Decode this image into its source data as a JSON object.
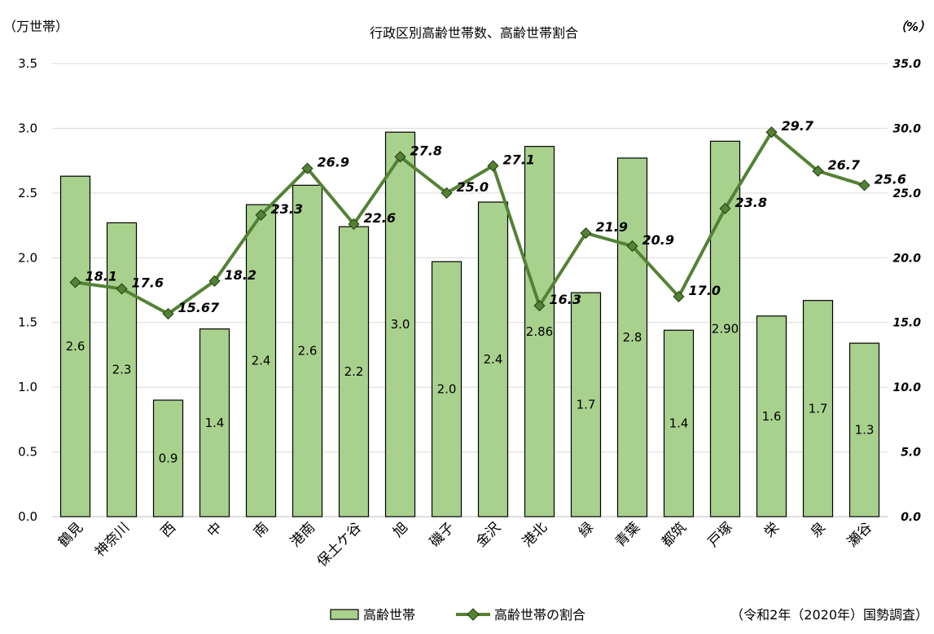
{
  "chart_data": {
    "type": "bar",
    "title": "行政区別高齢世帯数、高齢世帯割合",
    "left_unit": "（万世帯）",
    "right_unit": "（%）",
    "source": "（令和2年（2020年）国勢調査）",
    "categories": [
      "鶴見",
      "神奈川",
      "西",
      "中",
      "南",
      "港南",
      "保土ケ谷",
      "旭",
      "磯子",
      "金沢",
      "港北",
      "緑",
      "青葉",
      "都筑",
      "戸塚",
      "栄",
      "泉",
      "瀬谷"
    ],
    "ylim": [
      0,
      3.5
    ],
    "y2lim": [
      0,
      35.0
    ],
    "yticks": [
      "0.0",
      "0.5",
      "1.0",
      "1.5",
      "2.0",
      "2.5",
      "3.0",
      "3.5"
    ],
    "y2ticks": [
      "0.0",
      "5.0",
      "10.0",
      "15.0",
      "20.0",
      "25.0",
      "30.0",
      "35.0"
    ],
    "grid": true,
    "legend_position": "bottom",
    "series": [
      {
        "name": "高齢世帯",
        "type": "bar",
        "axis": "left",
        "color": "#a9d18e",
        "values": [
          2.63,
          2.27,
          0.9,
          1.45,
          2.41,
          2.56,
          2.24,
          2.97,
          1.97,
          2.43,
          2.86,
          1.73,
          2.77,
          1.44,
          2.9,
          1.55,
          1.67,
          1.34
        ],
        "labels": [
          "2.6",
          "2.3",
          "0.9",
          "1.4",
          "2.4",
          "2.6",
          "2.2",
          "3.0",
          "2.0",
          "2.4",
          "2.86",
          "1.7",
          "2.8",
          "1.4",
          "2.90",
          "1.6",
          "1.7",
          "1.3"
        ]
      },
      {
        "name": "高齢世帯の割合",
        "type": "line",
        "axis": "right",
        "color": "#548235",
        "values": [
          18.1,
          17.6,
          15.67,
          18.2,
          23.3,
          26.9,
          22.6,
          27.8,
          25.0,
          27.1,
          16.3,
          21.9,
          20.9,
          17.0,
          23.8,
          29.7,
          26.7,
          25.6
        ],
        "labels": [
          "18.1",
          "17.6",
          "15.67",
          "18.2",
          "23.3",
          "26.9",
          "22.6",
          "27.8",
          "25.0",
          "27.1",
          "16.3",
          "21.9",
          "20.9",
          "17.0",
          "23.8",
          "29.7",
          "26.7",
          "25.6"
        ]
      }
    ]
  }
}
